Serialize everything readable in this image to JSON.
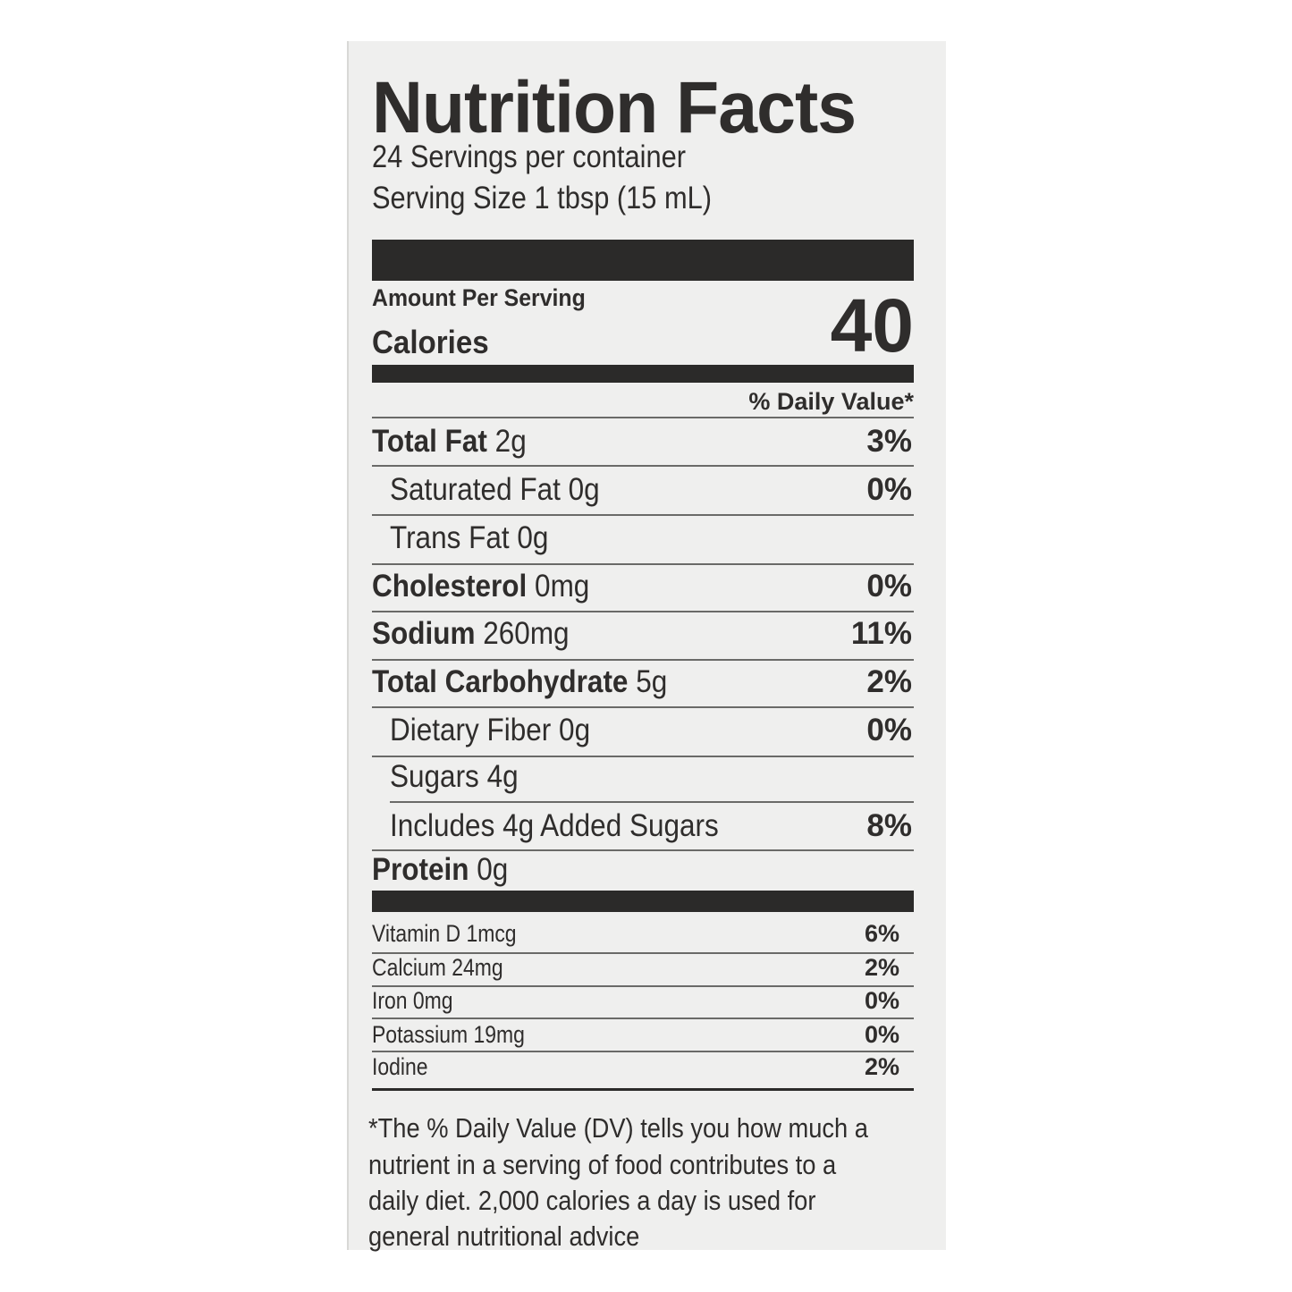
{
  "label": {
    "title": "Nutrition Facts",
    "servings_per_container": "24 Servings per container",
    "serving_size": "Serving Size 1 tbsp (15 mL)",
    "amount_per_serving": "Amount Per Serving",
    "calories_label": "Calories",
    "calories_value": "40",
    "daily_value_header": "% Daily Value*",
    "nutrients": [
      {
        "name": "Total Fat",
        "amount": "2g",
        "dv": "3%"
      },
      {
        "name": "Saturated Fat",
        "amount": "0g",
        "dv": "0%"
      },
      {
        "name": "Trans Fat",
        "amount": "0g",
        "dv": ""
      },
      {
        "name": "Cholesterol",
        "amount": "0mg",
        "dv": "0%"
      },
      {
        "name": "Sodium",
        "amount": "260mg",
        "dv": "11%"
      },
      {
        "name": "Total Carbohydrate",
        "amount": "5g",
        "dv": "2%"
      },
      {
        "name": "Dietary Fiber",
        "amount": "0g",
        "dv": "0%"
      },
      {
        "name": "Sugars",
        "amount": "4g",
        "dv": ""
      },
      {
        "name": "Includes 4g Added Sugars",
        "amount": "",
        "dv": "8%"
      },
      {
        "name": "Protein",
        "amount": "0g",
        "dv": ""
      }
    ],
    "vitamins": [
      {
        "name": "Vitamin D 1mcg",
        "dv": "6%"
      },
      {
        "name": "Calcium 24mg",
        "dv": "2%"
      },
      {
        "name": "Iron 0mg",
        "dv": "0%"
      },
      {
        "name": "Potassium 19mg",
        "dv": "0%"
      },
      {
        "name": "Iodine",
        "dv": "2%"
      }
    ],
    "footnote": [
      "*The % Daily Value (DV) tells you how much a",
      "nutrient in a serving of food contributes to a",
      "daily diet. 2,000 calories a day is used for",
      "general nutritional advice"
    ]
  }
}
